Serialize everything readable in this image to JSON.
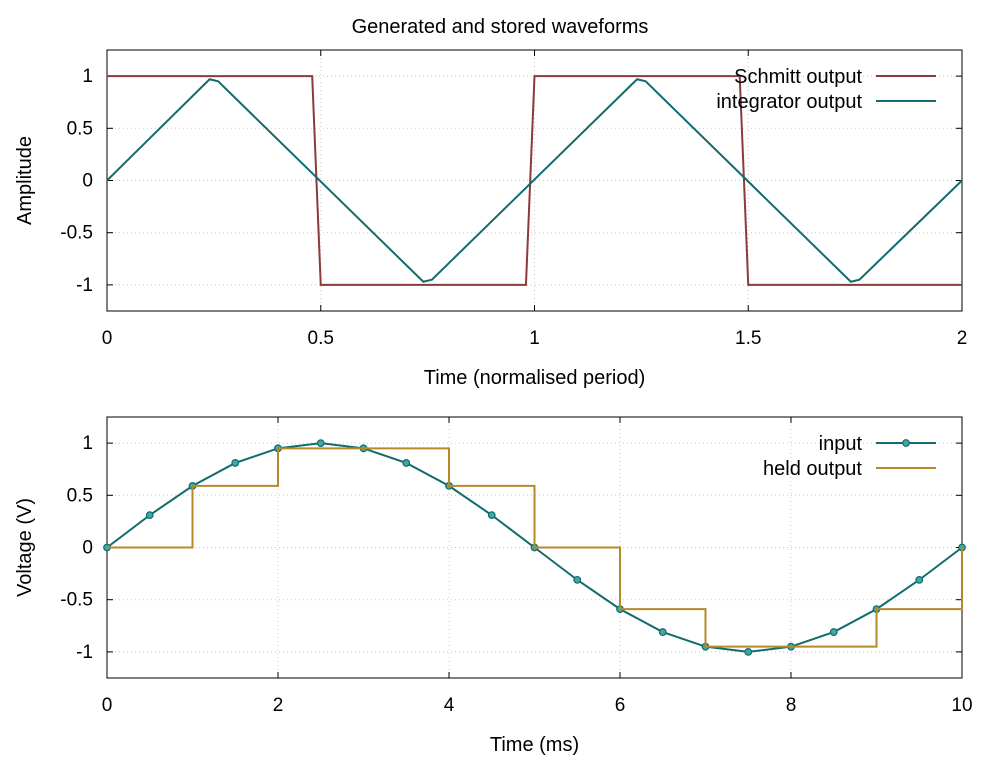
{
  "figure": {
    "title": "Generated and stored waveforms"
  },
  "chart_data": [
    {
      "type": "line",
      "title": "Generated and stored waveforms",
      "xlabel": "Time (normalised period)",
      "ylabel": "Amplitude",
      "xlim": [
        0,
        2
      ],
      "ylim": [
        -1.25,
        1.25
      ],
      "xticks": [
        "0",
        "0.5",
        "1",
        "1.5",
        "2"
      ],
      "yticks": [
        "-1",
        "-0.5",
        "0",
        "0.5",
        "1"
      ],
      "grid": true,
      "legend_position": "top-right",
      "series": [
        {
          "name": "Schmitt output",
          "color": "#8b3a3a",
          "x": [
            0,
            0.48,
            0.5,
            0.98,
            1.0,
            1.48,
            1.5,
            2.0
          ],
          "y": [
            1,
            1,
            -1,
            -1,
            1,
            1,
            -1,
            -1
          ]
        },
        {
          "name": "integrator output",
          "color": "#136b6b",
          "x": [
            0,
            0.24,
            0.26,
            0.74,
            0.76,
            1.24,
            1.26,
            1.74,
            1.76,
            2.0
          ],
          "y": [
            0,
            0.97,
            0.95,
            -0.97,
            -0.95,
            0.97,
            0.95,
            -0.97,
            -0.95,
            0
          ]
        }
      ]
    },
    {
      "type": "line",
      "title": "",
      "xlabel": "Time (ms)",
      "ylabel": "Voltage (V)",
      "xlim": [
        0,
        10
      ],
      "ylim": [
        -1.25,
        1.25
      ],
      "xticks": [
        "0",
        "2",
        "4",
        "6",
        "8",
        "10"
      ],
      "yticks": [
        "-1",
        "-0.5",
        "0",
        "0.5",
        "1"
      ],
      "grid": true,
      "legend_position": "top-right",
      "series": [
        {
          "name": "input",
          "color": "#136b6b",
          "markers": true,
          "x": [
            0,
            0.5,
            1,
            1.5,
            2,
            2.5,
            3,
            3.5,
            4,
            4.5,
            5,
            5.5,
            6,
            6.5,
            7,
            7.5,
            8,
            8.5,
            9,
            9.5,
            10
          ],
          "y": [
            0,
            0.31,
            0.59,
            0.81,
            0.95,
            1.0,
            0.95,
            0.81,
            0.59,
            0.31,
            0,
            -0.31,
            -0.59,
            -0.81,
            -0.95,
            -1.0,
            -0.95,
            -0.81,
            -0.59,
            -0.31,
            0
          ]
        },
        {
          "name": "held output",
          "color": "#b58a2a",
          "step": true,
          "x": [
            0,
            1,
            2,
            3,
            4,
            5,
            6,
            7,
            8,
            9,
            10
          ],
          "y": [
            0,
            0.59,
            0.95,
            0.95,
            0.59,
            0,
            -0.59,
            -0.95,
            -0.95,
            -0.59,
            0
          ]
        }
      ]
    }
  ]
}
